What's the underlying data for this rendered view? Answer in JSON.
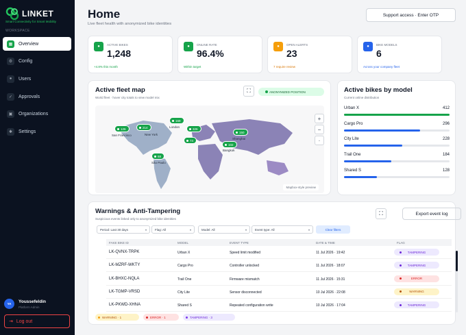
{
  "brand": {
    "name": "LINKET",
    "tagline": "Smart Connectivity for Smart Mobility"
  },
  "sidebar": {
    "section_label": "WORKSPACE",
    "items": [
      {
        "label": "Overview",
        "icon": "overview-icon"
      },
      {
        "label": "Config",
        "icon": "config-icon"
      },
      {
        "label": "Users",
        "icon": "users-icon"
      },
      {
        "label": "Approvals",
        "icon": "approvals-icon"
      },
      {
        "label": "Organizations",
        "icon": "organizations-icon"
      },
      {
        "label": "Settings",
        "icon": "settings-icon"
      }
    ],
    "active_index": 0,
    "user": {
      "initials": "YA",
      "name": "Youssefeldin",
      "role": "Platform Admin"
    },
    "logout_label": "Log out"
  },
  "header": {
    "title": "Home",
    "subtitle": "Live fleet health with anonymized bike identities",
    "support_button": "Support access · Enter OTP"
  },
  "kpis": [
    {
      "label": "ACTIVE BIKES",
      "value": "1,248",
      "foot": "+4.8% this month",
      "color": "#16a34a",
      "foot_color": "#16a34a"
    },
    {
      "label": "ONLINE RATE",
      "value": "96.4%",
      "foot": "Within target",
      "color": "#16a34a",
      "foot_color": "#16a34a"
    },
    {
      "label": "OPEN ALERTS",
      "value": "23",
      "foot": "7 require review",
      "color": "#f59e0b",
      "foot_color": "#d97706"
    },
    {
      "label": "BIKE MODELS",
      "value": "6",
      "foot": "Across your company fleet",
      "color": "#2563eb",
      "foot_color": "#2563eb"
    }
  ],
  "map": {
    "title": "Active fleet map",
    "subtitle": "World fleet · hover city totals to view model mix",
    "badge": "ANONYMIZED POSITION",
    "note": "Mapbox-style preview",
    "pins": [
      "126",
      "214",
      "169",
      "326",
      "74",
      "102",
      "150",
      "68"
    ],
    "cities": [
      "San Francisco",
      "New York",
      "London",
      "Shanghai",
      "Bangkok",
      "São Paulo"
    ]
  },
  "models": {
    "title": "Active bikes by model",
    "subtitle": "Current online distribution",
    "max": 412,
    "items": [
      {
        "name": "Urban X",
        "value": 412,
        "color": "#16a34a"
      },
      {
        "name": "Cargo Pro",
        "value": 296,
        "color": "#2563eb"
      },
      {
        "name": "City Lite",
        "value": 228,
        "color": "#2563eb"
      },
      {
        "name": "Trail One",
        "value": 184,
        "color": "#2563eb"
      },
      {
        "name": "Shared S",
        "value": 128,
        "color": "#2563eb"
      }
    ]
  },
  "warnings": {
    "title": "Warnings & Anti-Tampering",
    "subtitle": "Suspicious events linked only to anonymized bike identities",
    "export_label": "Export event log",
    "filters": [
      "Period: Last 30 days",
      "Flag: All",
      "Model: All",
      "Event type: All"
    ],
    "clear_label": "Clear filters",
    "columns": [
      "FAKE BIKE ID",
      "MODEL",
      "EVENT TYPE",
      "DATE & TIME",
      "FLAG"
    ],
    "rows": [
      {
        "id": "LK-QVNX-TRPK",
        "model": "Urban X",
        "event": "Speed limit modified",
        "date": "11 Jul 2026 · 19:42",
        "flag": "TAMPERING",
        "bg": "#ede9fe",
        "fg": "#6d28d9"
      },
      {
        "id": "LK-MZRF-WKTY",
        "model": "Cargo Pro",
        "event": "Controller unlocked",
        "date": "11 Jul 2026 · 18:07",
        "flag": "TAMPERING",
        "bg": "#ede9fe",
        "fg": "#6d28d9"
      },
      {
        "id": "LK-BHXC-NQLA",
        "model": "Trail One",
        "event": "Firmware mismatch",
        "date": "11 Jul 2026 · 15:31",
        "flag": "ERROR",
        "bg": "#fee2e2",
        "fg": "#dc2626"
      },
      {
        "id": "LK-TGMP-VRSD",
        "model": "City Lite",
        "event": "Sensor disconnected",
        "date": "10 Jul 2026 · 22:08",
        "flag": "WARNING",
        "bg": "#fef3c7",
        "fg": "#b45309"
      },
      {
        "id": "LK-PKWD-XHNA",
        "model": "Shared S",
        "event": "Repeated configuration write",
        "date": "10 Jul 2026 · 17:04",
        "flag": "TAMPERING",
        "bg": "#ede9fe",
        "fg": "#6d28d9"
      }
    ],
    "summary": [
      {
        "label": "WARNING · 1",
        "bg": "#fef3c7",
        "fg": "#b45309",
        "dot": "#f59e0b"
      },
      {
        "label": "ERROR · 1",
        "bg": "#fee2e2",
        "fg": "#dc2626",
        "dot": "#dc2626"
      },
      {
        "label": "TAMPERING · 3",
        "bg": "#ede9fe",
        "fg": "#6d28d9",
        "dot": "#7c3aed"
      }
    ]
  }
}
